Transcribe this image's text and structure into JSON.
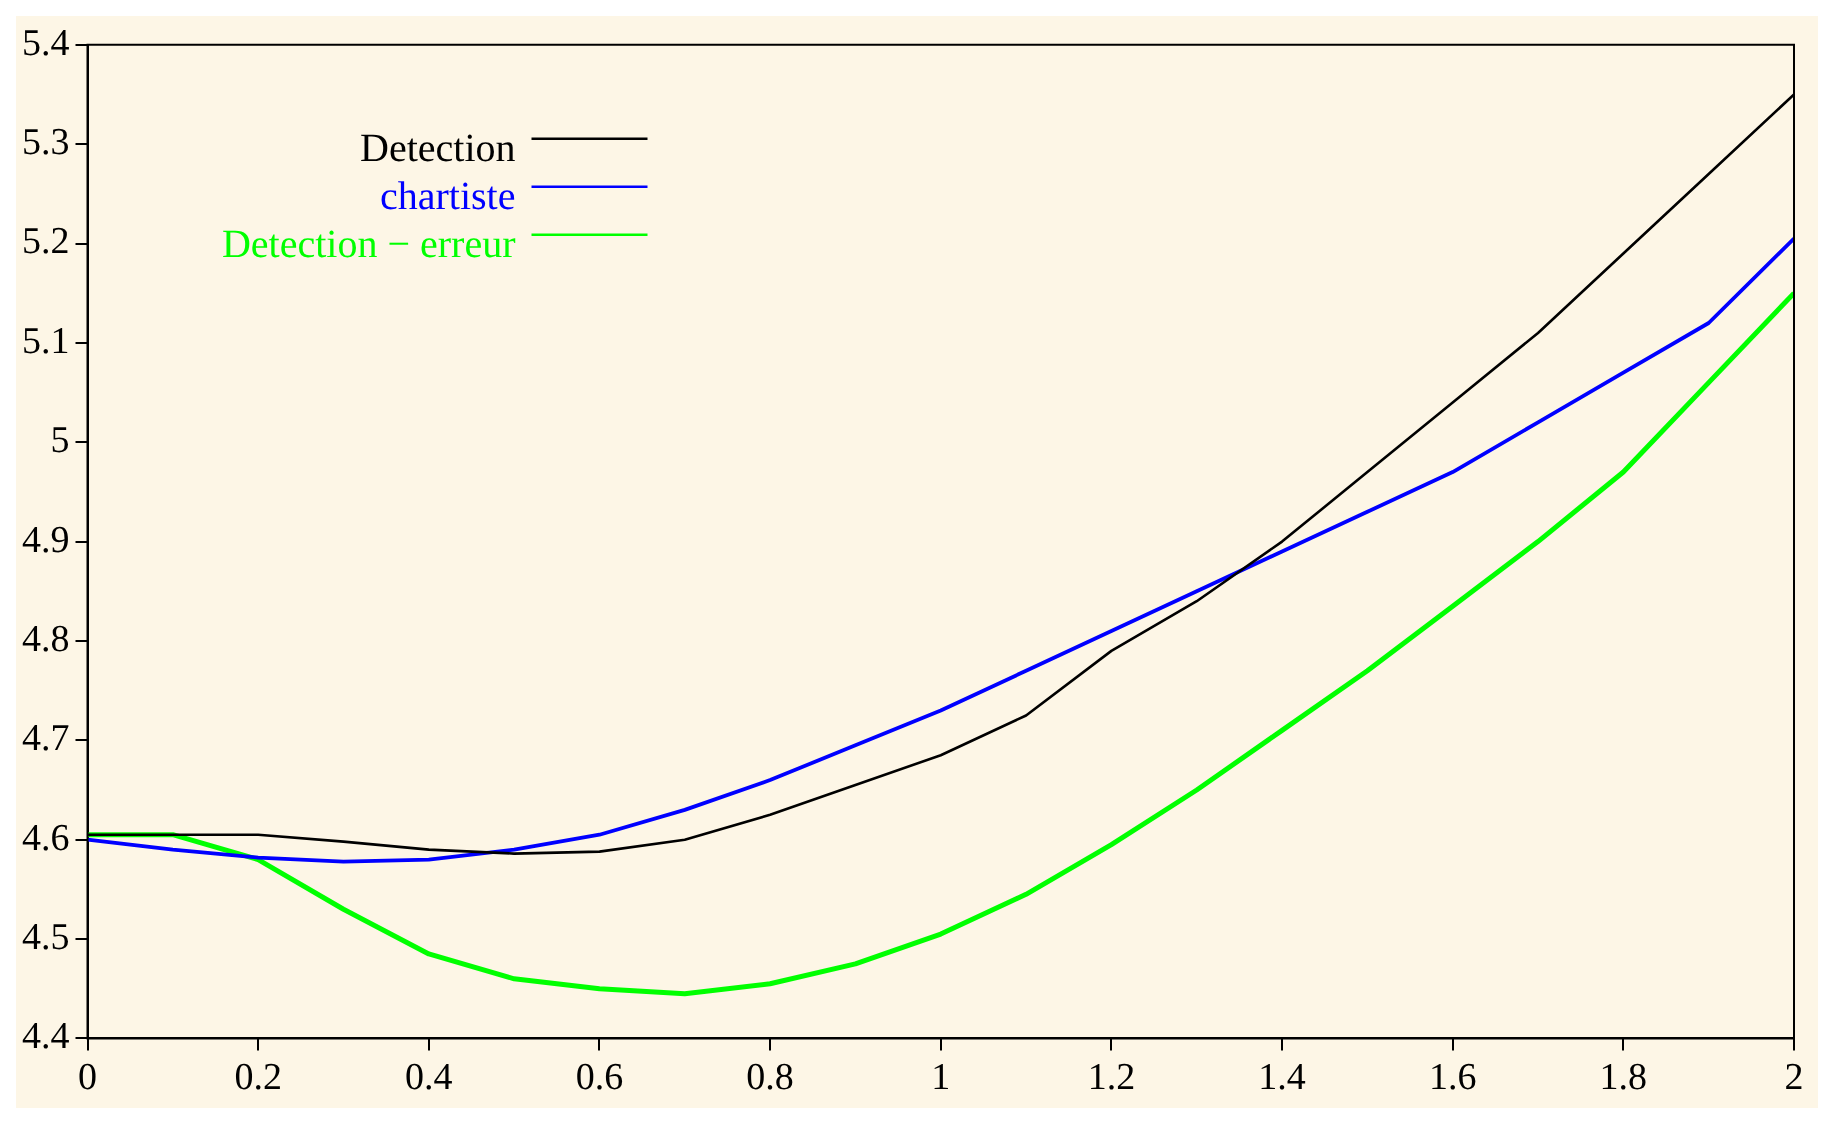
{
  "chart_data": {
    "type": "line",
    "x": [
      0,
      0.1,
      0.2,
      0.3,
      0.4,
      0.5,
      0.6,
      0.7,
      0.8,
      0.9,
      1,
      1.1,
      1.2,
      1.3,
      1.4,
      1.5,
      1.6,
      1.7,
      1.8,
      1.9,
      2
    ],
    "series": [
      {
        "name": "Detection",
        "color": "#000000",
        "values": [
          4.605,
          4.605,
          4.605,
          4.598,
          4.59,
          4.586,
          4.588,
          4.6,
          4.625,
          4.655,
          4.685,
          4.725,
          4.79,
          4.84,
          4.9,
          4.97,
          5.04,
          5.11,
          5.19,
          5.27,
          5.35
        ]
      },
      {
        "name": "chartiste",
        "color": "#0000ff",
        "values": [
          4.6,
          4.59,
          4.582,
          4.578,
          4.58,
          4.59,
          4.605,
          4.63,
          4.66,
          4.695,
          4.73,
          4.77,
          4.81,
          4.85,
          4.89,
          4.93,
          4.97,
          5.02,
          5.07,
          5.12,
          5.205
        ]
      },
      {
        "name": "Detection − erreur",
        "color": "#00ff00",
        "values": [
          4.605,
          4.605,
          4.58,
          4.53,
          4.485,
          4.46,
          4.45,
          4.445,
          4.455,
          4.475,
          4.505,
          4.545,
          4.595,
          4.65,
          4.71,
          4.77,
          4.835,
          4.9,
          4.97,
          5.06,
          5.15
        ]
      }
    ],
    "xlim": [
      0,
      2
    ],
    "xticks": [
      0,
      0.2,
      0.4,
      0.6,
      0.8,
      1,
      1.2,
      1.4,
      1.6,
      1.8,
      2
    ],
    "ylim": [
      4.4,
      5.4
    ],
    "yticks": [
      4.4,
      4.5,
      4.6,
      4.7,
      4.8,
      4.9,
      5,
      5.1,
      5.2,
      5.3,
      5.4
    ],
    "grid": false,
    "legend": "top left",
    "marker": "none",
    "line_style": "solid"
  }
}
